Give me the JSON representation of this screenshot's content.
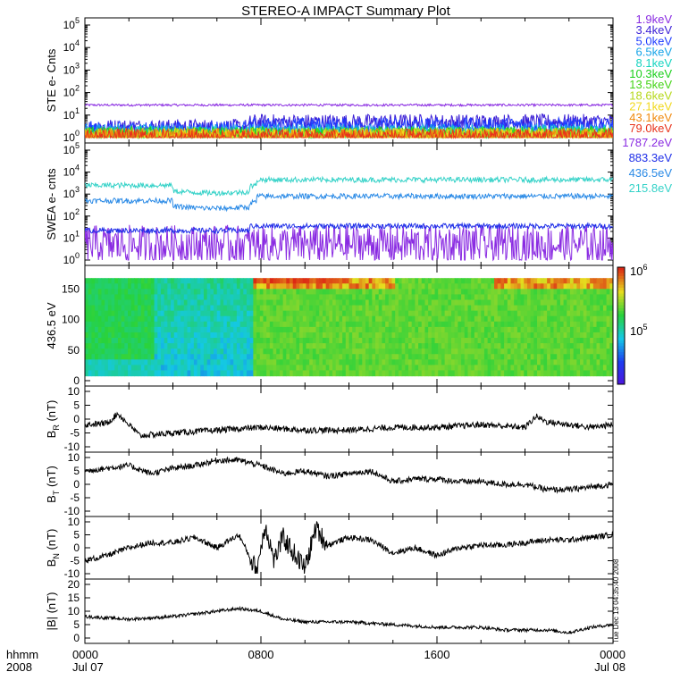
{
  "title": "STEREO-A IMPACT Summary Plot",
  "footer": {
    "left_top": "hhmm",
    "left_bottom": "2008",
    "ticks": [
      "0000",
      "0800",
      "1600",
      "0000"
    ],
    "dates": [
      "Jul 07",
      "Jul 08"
    ]
  },
  "side_annotation": "Tue Dec 13 04:35:40 2008",
  "colorbar": {
    "top_label": "10",
    "top_exp": "6",
    "mid_label": "10",
    "mid_exp": "5"
  },
  "chart_data": [
    {
      "type": "line",
      "ylabel": "STE e- Cnts",
      "yscale": "log",
      "ylim": [
        1,
        100000
      ],
      "yticks": [
        "10^0",
        "10^1",
        "10^2",
        "10^3",
        "10^4",
        "10^5"
      ],
      "xlim_hours": [
        0,
        24
      ],
      "series": [
        {
          "name": "1.9keV",
          "color": "#8a2be2",
          "level": 28
        },
        {
          "name": "3.4keV",
          "color": "#3b1fd6",
          "level": 3,
          "after_0730": 5
        },
        {
          "name": "5.0keV",
          "color": "#1f3cff",
          "level": 2.4,
          "after_0730": 3.5
        },
        {
          "name": "6.5keV",
          "color": "#17a4e8",
          "level": 1.8
        },
        {
          "name": "8.1keV",
          "color": "#16d4c0",
          "level": 1.5
        },
        {
          "name": "10.3keV",
          "color": "#1ccf1c",
          "level": 1.4
        },
        {
          "name": "13.5keV",
          "color": "#45d418",
          "level": 1.3
        },
        {
          "name": "18.6keV",
          "color": "#b6d81a",
          "level": 1.25
        },
        {
          "name": "27.1keV",
          "color": "#f1d81c",
          "level": 1.2
        },
        {
          "name": "43.1keV",
          "color": "#f08a0e",
          "level": 1.15
        },
        {
          "name": "79.0keV",
          "color": "#e8321a",
          "level": 1.1
        }
      ]
    },
    {
      "type": "line",
      "ylabel": "SWEA e- cnts",
      "yscale": "log",
      "ylim": [
        1,
        100000
      ],
      "yticks": [
        "10^0",
        "10^1",
        "10^2",
        "10^3",
        "10^4",
        "10^5"
      ],
      "xlim_hours": [
        0,
        24
      ],
      "series": [
        {
          "name": "1787.2eV",
          "color": "#8a2be2",
          "level": 5
        },
        {
          "name": "883.3eV",
          "color": "#1f2fe8",
          "level": 22,
          "after_0730": 35
        },
        {
          "name": "436.5eV",
          "color": "#2a8ae6",
          "level": 500,
          "after_0730": 800
        },
        {
          "name": "215.8eV",
          "color": "#35d2c8",
          "level": 2500,
          "after_0730": 4500
        }
      ]
    },
    {
      "type": "heatmap",
      "ylabel": "436.5 eV",
      "ylim": [
        0,
        180
      ],
      "yticks": [
        "0",
        "50",
        "100",
        "150"
      ],
      "xlim_hours": [
        0,
        24
      ],
      "colorbar_range": [
        "10^5",
        "10^6"
      ]
    },
    {
      "type": "line",
      "ylabel": "B_R (nT)",
      "ylim": [
        -10,
        10
      ],
      "yticks": [
        "-10",
        "-5",
        "0",
        "5",
        "10"
      ],
      "xlim_hours": [
        0,
        24
      ],
      "series": [
        {
          "points": [
            [
              0,
              -2
            ],
            [
              1,
              -1.5
            ],
            [
              1.5,
              2
            ],
            [
              2,
              -2
            ],
            [
              2.5,
              -6
            ],
            [
              4,
              -5
            ],
            [
              6,
              -4
            ],
            [
              8,
              -3
            ],
            [
              10,
              -4
            ],
            [
              12,
              -4
            ],
            [
              14,
              -3
            ],
            [
              16,
              -3
            ],
            [
              18,
              -2
            ],
            [
              20,
              -3
            ],
            [
              20.5,
              1
            ],
            [
              21,
              -1
            ],
            [
              22,
              -2
            ],
            [
              23,
              -3
            ],
            [
              24,
              -2
            ]
          ]
        }
      ]
    },
    {
      "type": "line",
      "ylabel": "B_T (nT)",
      "ylim": [
        -10,
        10
      ],
      "yticks": [
        "-10",
        "-5",
        "0",
        "5",
        "10"
      ],
      "xlim_hours": [
        0,
        24
      ],
      "series": [
        {
          "points": [
            [
              0,
              5
            ],
            [
              1,
              6
            ],
            [
              2,
              7
            ],
            [
              3,
              4
            ],
            [
              4,
              6
            ],
            [
              5,
              7
            ],
            [
              6,
              9
            ],
            [
              7,
              9
            ],
            [
              8,
              7
            ],
            [
              9,
              4
            ],
            [
              10,
              5
            ],
            [
              11,
              3
            ],
            [
              12,
              4
            ],
            [
              13,
              5
            ],
            [
              14,
              1
            ],
            [
              15,
              2
            ],
            [
              16,
              2
            ],
            [
              17,
              1
            ],
            [
              18,
              1
            ],
            [
              19,
              0
            ],
            [
              20,
              0
            ],
            [
              21,
              -2
            ],
            [
              22,
              -2
            ],
            [
              23,
              -1
            ],
            [
              24,
              0
            ]
          ]
        }
      ]
    },
    {
      "type": "line",
      "ylabel": "B_N (nT)",
      "ylim": [
        -10,
        10
      ],
      "yticks": [
        "-10",
        "-5",
        "0",
        "5",
        "10"
      ],
      "xlim_hours": [
        0,
        24
      ],
      "series": [
        {
          "points": [
            [
              0,
              -5
            ],
            [
              1,
              -3
            ],
            [
              2,
              0
            ],
            [
              3,
              2
            ],
            [
              4,
              2
            ],
            [
              5,
              4
            ],
            [
              6,
              0
            ],
            [
              7,
              5
            ],
            [
              7.8,
              -9
            ],
            [
              8.2,
              9
            ],
            [
              8.6,
              -5
            ],
            [
              9,
              4
            ],
            [
              10,
              -8
            ],
            [
              10.5,
              8
            ],
            [
              11,
              1
            ],
            [
              12,
              4
            ],
            [
              13,
              3
            ],
            [
              14,
              -2
            ],
            [
              15,
              0
            ],
            [
              16,
              -3
            ],
            [
              17,
              0
            ],
            [
              18,
              1
            ],
            [
              19,
              1
            ],
            [
              20,
              2
            ],
            [
              21,
              3
            ],
            [
              22,
              3
            ],
            [
              23,
              4
            ],
            [
              24,
              5
            ]
          ]
        }
      ]
    },
    {
      "type": "line",
      "ylabel": "|B| (nT)",
      "ylim": [
        0,
        20
      ],
      "yticks": [
        "0",
        "5",
        "10",
        "15",
        "20"
      ],
      "xlim_hours": [
        0,
        24
      ],
      "series": [
        {
          "points": [
            [
              0,
              8
            ],
            [
              2,
              7
            ],
            [
              4,
              8
            ],
            [
              6,
              10
            ],
            [
              7,
              11
            ],
            [
              8,
              10
            ],
            [
              9,
              7
            ],
            [
              10,
              6
            ],
            [
              12,
              6
            ],
            [
              14,
              5
            ],
            [
              16,
              4
            ],
            [
              18,
              4
            ],
            [
              19,
              3
            ],
            [
              20,
              3
            ],
            [
              21,
              3
            ],
            [
              22,
              2
            ],
            [
              23,
              4
            ],
            [
              24,
              5
            ]
          ]
        }
      ]
    }
  ]
}
